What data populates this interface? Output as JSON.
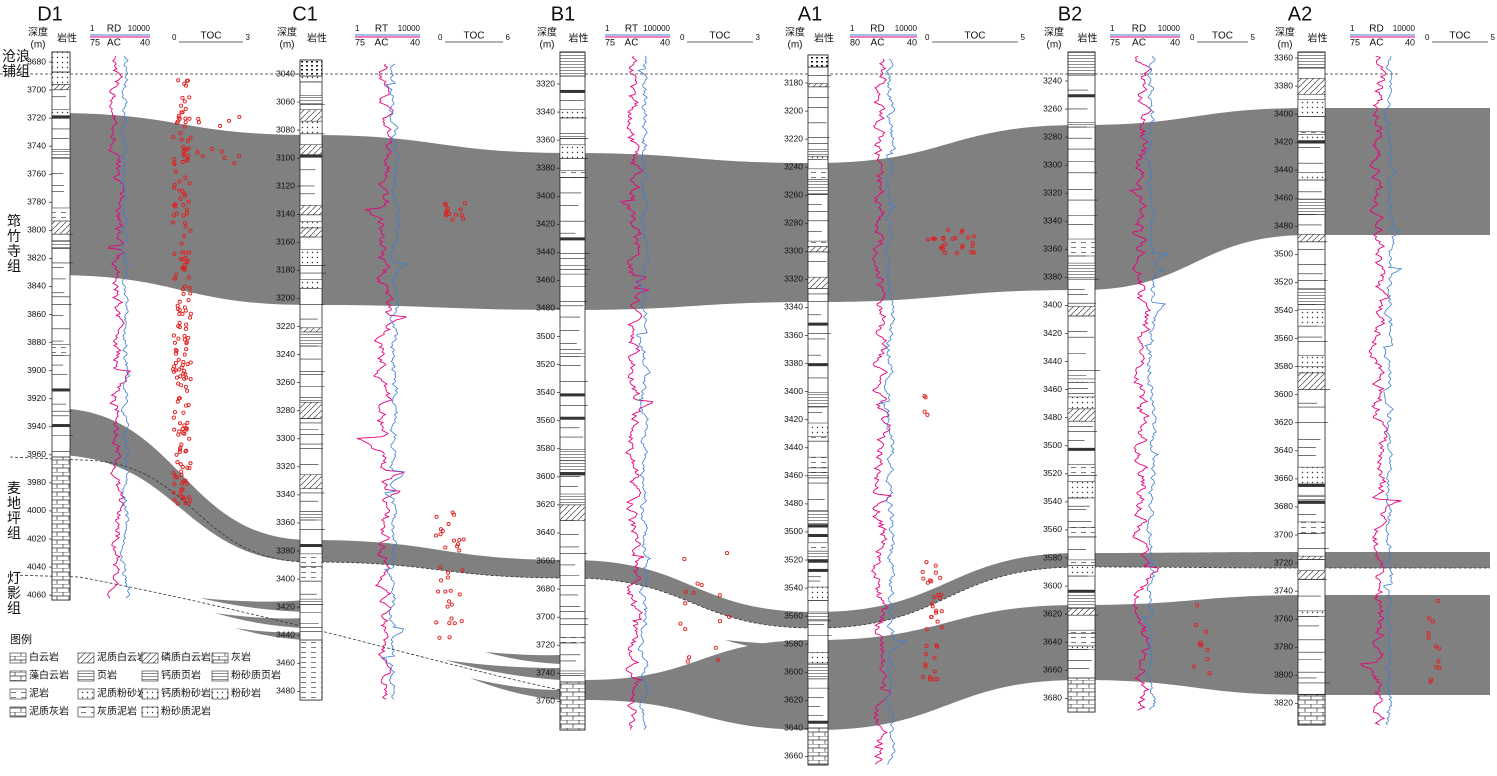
{
  "wells": [
    {
      "name": "D1",
      "depth_label": "深度",
      "depth_unit": "(m)",
      "lith_label": "岩性",
      "curve1": {
        "name": "RD",
        "min": "1",
        "max": "10000"
      },
      "curve2": {
        "name": "AC",
        "min": "75",
        "max": "40"
      },
      "toc": {
        "name": "TOC",
        "min": "0",
        "max": "3"
      },
      "depths": [
        3680,
        3700,
        3720,
        3740,
        3760,
        3780,
        3800,
        3820,
        3840,
        3860,
        3880,
        3900,
        3920,
        3940,
        3960,
        3980,
        4000,
        4020,
        4040,
        4060
      ]
    },
    {
      "name": "C1",
      "depth_label": "深度",
      "depth_unit": "(m)",
      "lith_label": "岩性",
      "curve1": {
        "name": "RT",
        "min": "1",
        "max": "10000"
      },
      "curve2": {
        "name": "AC",
        "min": "75",
        "max": "40"
      },
      "toc": {
        "name": "TOC",
        "min": "0",
        "max": "6"
      },
      "depths": [
        3040,
        3060,
        3080,
        3100,
        3120,
        3140,
        3160,
        3180,
        3200,
        3220,
        3240,
        3260,
        3280,
        3300,
        3320,
        3340,
        3360,
        3380,
        3400,
        3420,
        3440,
        3460,
        3480
      ]
    },
    {
      "name": "B1",
      "depth_label": "深度",
      "depth_unit": "(m)",
      "lith_label": "岩性",
      "curve1": {
        "name": "RT",
        "min": "1",
        "max": "100000"
      },
      "curve2": {
        "name": "AC",
        "min": "75",
        "max": "40"
      },
      "toc": {
        "name": "TOC",
        "min": "0",
        "max": "3"
      },
      "depths": [
        3320,
        3340,
        3360,
        3380,
        3400,
        3420,
        3440,
        3460,
        3480,
        3500,
        3520,
        3540,
        3560,
        3580,
        3600,
        3620,
        3640,
        3660,
        3680,
        3700,
        3720,
        3740,
        3760
      ]
    },
    {
      "name": "A1",
      "depth_label": "深度",
      "depth_unit": "(m)",
      "lith_label": "岩性",
      "curve1": {
        "name": "RD",
        "min": "1",
        "max": "10000"
      },
      "curve2": {
        "name": "AC",
        "min": "80",
        "max": "40"
      },
      "toc": {
        "name": "TOC",
        "min": "0",
        "max": "5"
      },
      "depths": [
        3180,
        3200,
        3220,
        3240,
        3260,
        3280,
        3300,
        3320,
        3340,
        3360,
        3380,
        3400,
        3420,
        3440,
        3460,
        3480,
        3500,
        3520,
        3540,
        3560,
        3580,
        3600,
        3620,
        3640,
        3660
      ]
    },
    {
      "name": "B2",
      "depth_label": "深度",
      "depth_unit": "(m)",
      "lith_label": "岩性",
      "curve1": {
        "name": "RD",
        "min": "1",
        "max": "10000"
      },
      "curve2": {
        "name": "AC",
        "min": "75",
        "max": "40"
      },
      "toc": {
        "name": "TOC",
        "min": "0",
        "max": "5"
      },
      "depths": [
        3240,
        3260,
        3280,
        3300,
        3320,
        3340,
        3360,
        3380,
        3400,
        3420,
        3440,
        3460,
        3480,
        3500,
        3520,
        3540,
        3560,
        3580,
        3600,
        3620,
        3640,
        3660,
        3680
      ]
    },
    {
      "name": "A2",
      "depth_label": "深度",
      "depth_unit": "(m)",
      "lith_label": "岩性",
      "curve1": {
        "name": "RD",
        "min": "1",
        "max": "10000"
      },
      "curve2": {
        "name": "AC",
        "min": "75",
        "max": "40"
      },
      "toc": {
        "name": "TOC",
        "min": "0",
        "max": "5"
      },
      "depths": [
        3360,
        3380,
        3400,
        3420,
        3440,
        3460,
        3480,
        3500,
        3520,
        3540,
        3560,
        3580,
        3600,
        3620,
        3640,
        3660,
        3680,
        3700,
        3720,
        3740,
        3760,
        3780,
        3800,
        3820
      ]
    }
  ],
  "formations": [
    "沧浪铺组",
    "筇竹寺组",
    "麦地坪组",
    "灯影组"
  ],
  "legend": {
    "title": "图例",
    "items": [
      "白云岩",
      "泥质白云岩",
      "磷质白云岩",
      "灰岩",
      "藻白云岩",
      "页岩",
      "钙质页岩",
      "粉砂质页岩",
      "泥岩",
      "泥质粉砂岩",
      "钙质粉砂岩",
      "粉砂岩",
      "泥质灰岩",
      "灰质泥岩",
      "粉砂质泥岩"
    ]
  }
}
